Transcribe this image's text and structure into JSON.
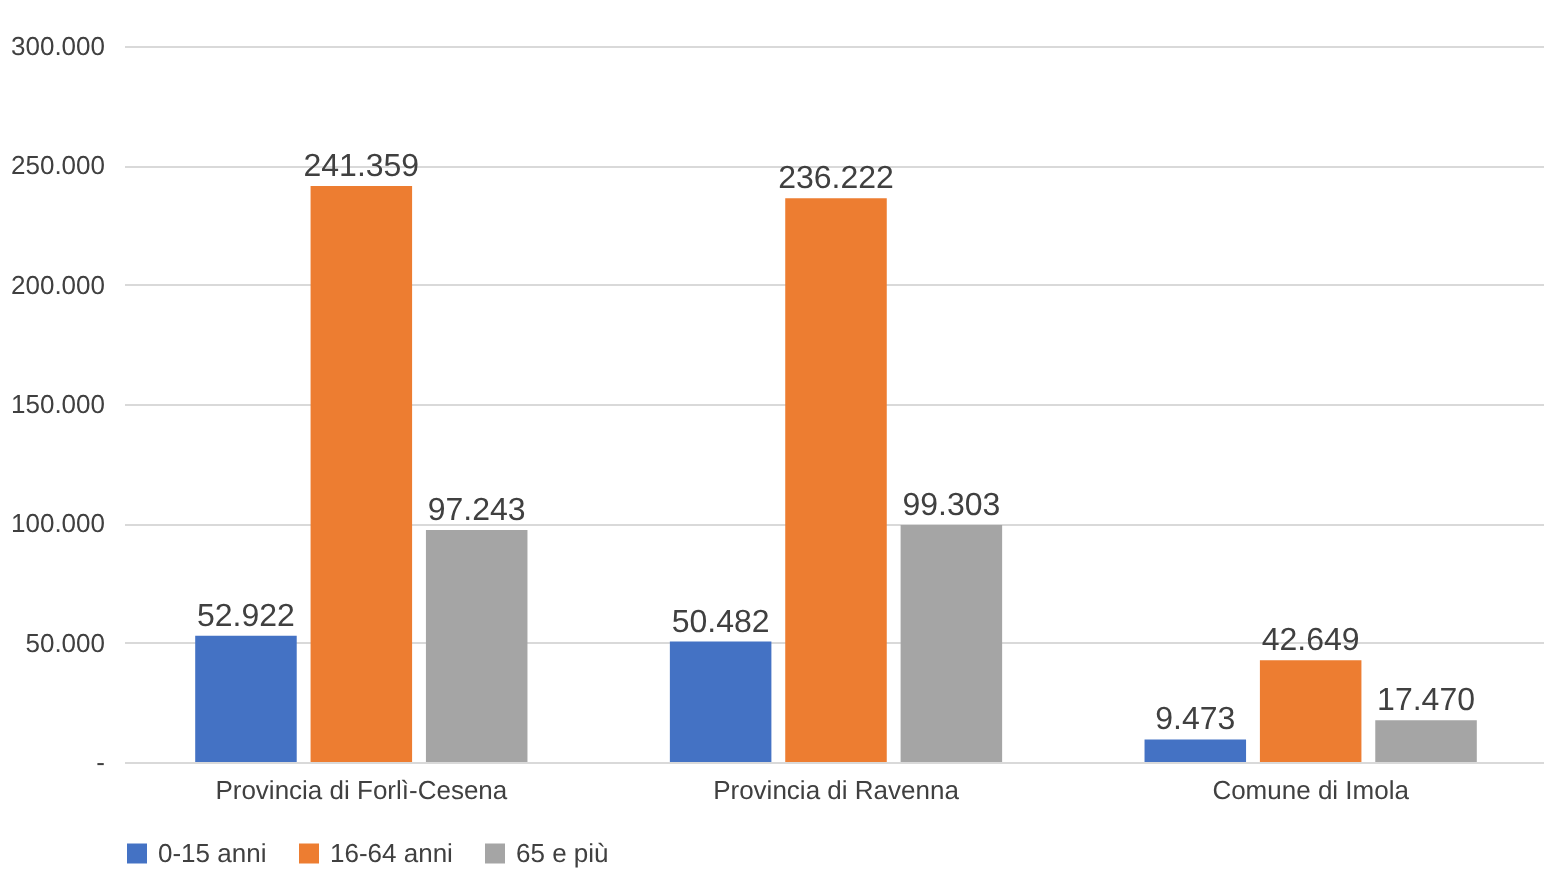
{
  "chart_data": {
    "type": "bar",
    "categories": [
      "Provincia di Forlì-Cesena",
      "Provincia di Ravenna",
      "Comune di Imola"
    ],
    "series": [
      {
        "name": "0-15 anni",
        "color": "#4472c4",
        "values": [
          52922,
          50482,
          9473
        ],
        "value_labels": [
          "52.922",
          "50.482",
          "9.473"
        ]
      },
      {
        "name": "16-64 anni",
        "color": "#ed7d31",
        "values": [
          241359,
          236222,
          42649
        ],
        "value_labels": [
          "241.359",
          "236.222",
          "42.649"
        ]
      },
      {
        "name": "65 e più",
        "color": "#a5a5a5",
        "values": [
          97243,
          99303,
          17470
        ],
        "value_labels": [
          "97.243",
          "99.303",
          "17.470"
        ]
      }
    ],
    "ylim": [
      0,
      300000
    ],
    "yticks": [
      {
        "value": 0,
        "label": "-"
      },
      {
        "value": 50000,
        "label": "50.000"
      },
      {
        "value": 100000,
        "label": "100.000"
      },
      {
        "value": 150000,
        "label": "150.000"
      },
      {
        "value": 200000,
        "label": "200.000"
      },
      {
        "value": 250000,
        "label": "250.000"
      },
      {
        "value": 300000,
        "label": "300.000"
      }
    ],
    "grid": "y",
    "legend": "bottom"
  }
}
